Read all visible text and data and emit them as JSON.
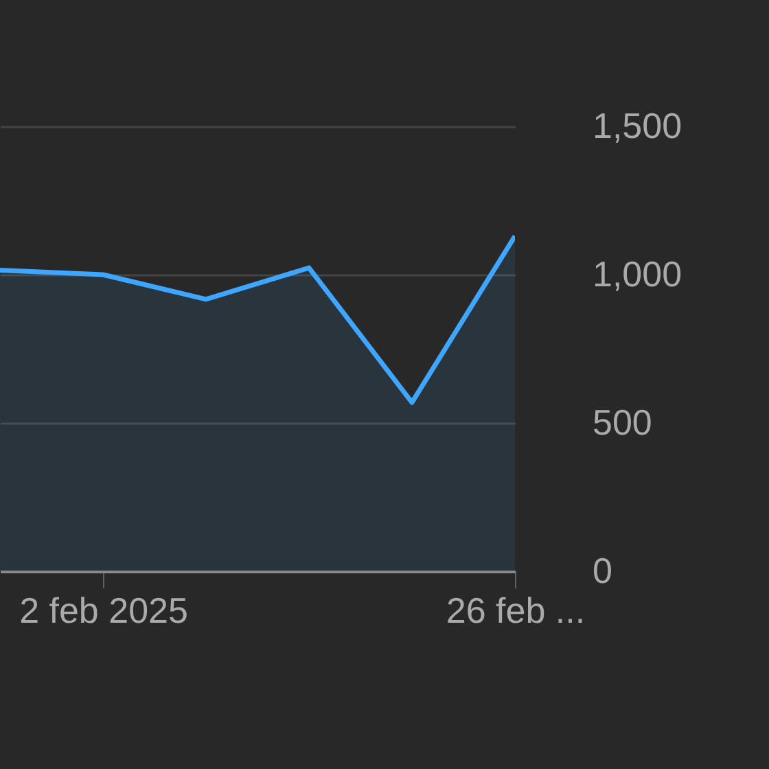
{
  "chart_data": {
    "type": "area",
    "categories": [
      null,
      "2 feb 2025",
      null,
      null,
      null,
      "26 feb ..."
    ],
    "series": [
      {
        "color": "#3ea6ff",
        "values": [
          1015,
          1000,
          917,
          1023,
          569,
          1130
        ]
      }
    ],
    "ylim": [
      0,
      1500
    ],
    "yticks": [
      {
        "value": 0,
        "label": "0"
      },
      {
        "value": 500,
        "label": "500"
      },
      {
        "value": 1000,
        "label": "1,000"
      },
      {
        "value": 1500,
        "label": "1,500"
      }
    ],
    "grid": "y"
  }
}
